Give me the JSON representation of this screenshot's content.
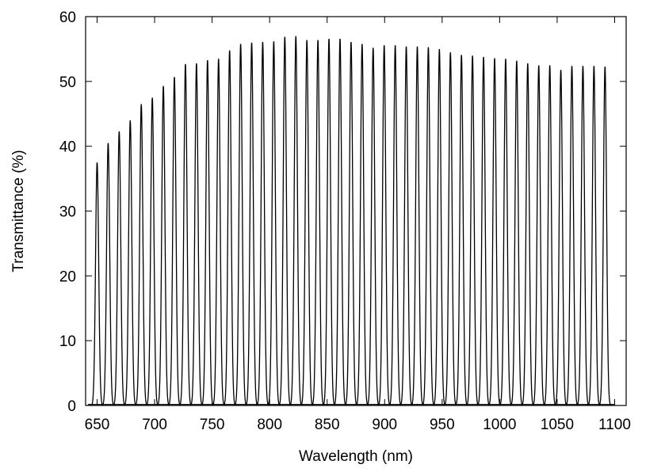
{
  "chart_data": {
    "type": "line",
    "title": "",
    "xlabel": "Wavelength (nm)",
    "ylabel": "Transmittance (%)",
    "xlim": [
      640,
      1110
    ],
    "ylim": [
      0,
      60
    ],
    "x_ticks": [
      650,
      700,
      750,
      800,
      850,
      900,
      950,
      1000,
      1050,
      1100
    ],
    "y_ticks": [
      0,
      10,
      20,
      30,
      40,
      50,
      60
    ],
    "grid": false,
    "legend": "none",
    "line_color": "#000000",
    "peak_fwhm_nm": 3.2,
    "series": [
      {
        "peaks_nm": [
          650,
          659.6,
          669.2,
          678.8,
          688.4,
          698,
          707.6,
          717.2,
          726.8,
          736.4,
          746,
          755.6,
          765.2,
          774.8,
          784.4,
          794,
          803.6,
          813.2,
          822.8,
          832.4,
          842,
          851.6,
          861.2,
          870.8,
          880.4,
          890,
          899.6,
          909.2,
          918.8,
          928.4,
          938,
          947.6,
          957.2,
          966.8,
          976.4,
          986,
          995.6,
          1005.2,
          1014.8,
          1024.4,
          1034,
          1043.6,
          1053.2,
          1062.8,
          1072.4,
          1082,
          1091.6
        ],
        "peaks_transmittance": [
          37.5,
          40.5,
          42.3,
          44,
          46.5,
          47.5,
          49.3,
          50.7,
          52.7,
          52.8,
          53.3,
          53.5,
          54.8,
          55.8,
          56,
          56.1,
          56.2,
          56.9,
          57,
          56.4,
          56.4,
          56.6,
          56.6,
          56.1,
          55.8,
          55.2,
          55.6,
          55.6,
          55.4,
          55.4,
          55.3,
          55,
          54.5,
          54.1,
          54,
          53.8,
          53.6,
          53.5,
          53.2,
          52.8,
          52.5,
          52.5,
          51.8,
          52.4,
          52.4,
          52.4,
          52.3
        ]
      }
    ]
  }
}
